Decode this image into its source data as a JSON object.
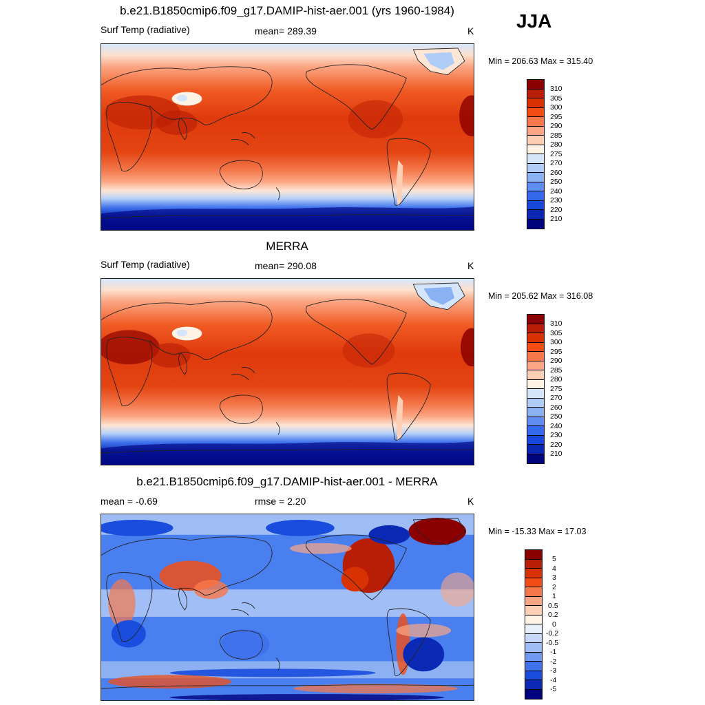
{
  "season": "JJA",
  "panels": [
    {
      "title": "b.e21.B1850cmip6.f09_g17.DAMIP-hist-aer.001 (yrs 1960-1984)",
      "left_label": "Surf Temp (radiative)",
      "center_label": "mean= 289.39",
      "units": "K",
      "minmax": "Min = 206.63 Max = 315.40",
      "colorbar": {
        "labels": [
          "310",
          "305",
          "300",
          "295",
          "290",
          "285",
          "280",
          "275",
          "270",
          "260",
          "250",
          "240",
          "230",
          "220",
          "210"
        ],
        "colors": [
          "#8b0000",
          "#b81d05",
          "#d83202",
          "#f24d15",
          "#f7784a",
          "#fba684",
          "#fdd0b5",
          "#fff3e6",
          "#d5e6fb",
          "#b0cdf8",
          "#8ab2f3",
          "#5e8ff0",
          "#3469ec",
          "#1747db",
          "#0a27b2",
          "#00037e"
        ]
      }
    },
    {
      "title": "MERRA",
      "left_label": "Surf Temp (radiative)",
      "center_label": "mean= 290.08",
      "units": "K",
      "minmax": "Min = 205.62 Max = 316.08",
      "colorbar": {
        "labels": [
          "310",
          "305",
          "300",
          "295",
          "290",
          "285",
          "280",
          "275",
          "270",
          "260",
          "250",
          "240",
          "230",
          "220",
          "210"
        ],
        "colors": [
          "#8b0000",
          "#b81d05",
          "#d83202",
          "#f24d15",
          "#f7784a",
          "#fba684",
          "#fdd0b5",
          "#fff3e6",
          "#d5e6fb",
          "#b0cdf8",
          "#8ab2f3",
          "#5e8ff0",
          "#3469ec",
          "#1747db",
          "#0a27b2",
          "#00037e"
        ]
      }
    },
    {
      "title": "b.e21.B1850cmip6.f09_g17.DAMIP-hist-aer.001 - MERRA",
      "left_label": "mean =  -0.69",
      "center_label": "rmse =   2.20",
      "units": "K",
      "minmax": "Min = -15.33 Max =  17.03",
      "colorbar": {
        "labels": [
          "5",
          "4",
          "3",
          "2",
          "1",
          "0.5",
          "0.2",
          "0",
          "-0.2",
          "-0.5",
          "-1",
          "-2",
          "-3",
          "-4",
          "-5"
        ],
        "colors": [
          "#8b0000",
          "#b81d05",
          "#d83202",
          "#f24d15",
          "#f7784a",
          "#fba684",
          "#fdd0b5",
          "#fff3e6",
          "#e8f0fc",
          "#c6d9f8",
          "#9dbdf4",
          "#6f9af0",
          "#3f72ec",
          "#1a4ddd",
          "#0a2ab5",
          "#00037e"
        ]
      }
    }
  ]
}
